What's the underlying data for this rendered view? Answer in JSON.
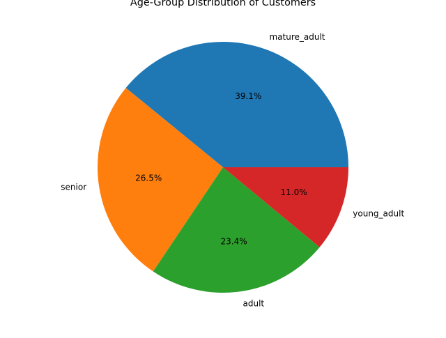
{
  "chart_data": {
    "type": "pie",
    "title": "Age-Group Distribution of Customers",
    "categories": [
      "mature_adult",
      "senior",
      "adult",
      "young_adult"
    ],
    "values": [
      39.1,
      26.5,
      23.4,
      11.0
    ],
    "percent_labels": [
      "39.1%",
      "26.5%",
      "23.4%",
      "11.0%"
    ],
    "colors": [
      "#1f77b4",
      "#ff7f0e",
      "#2ca02c",
      "#d62728"
    ],
    "start_angle_deg": 0,
    "direction": "counterclockwise",
    "legend": "none"
  }
}
